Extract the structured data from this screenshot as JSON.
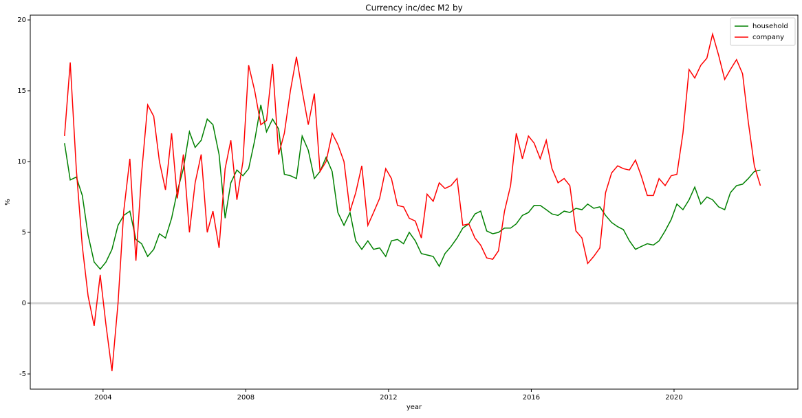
{
  "chart_data": {
    "type": "line",
    "title": "Currency inc/dec M2 by",
    "xlabel": "year",
    "ylabel": "%",
    "x": [
      2002.92,
      2003.08,
      2003.25,
      2003.42,
      2003.58,
      2003.75,
      2003.92,
      2004.08,
      2004.25,
      2004.42,
      2004.58,
      2004.75,
      2004.92,
      2005.08,
      2005.25,
      2005.42,
      2005.58,
      2005.75,
      2005.92,
      2006.08,
      2006.25,
      2006.42,
      2006.58,
      2006.75,
      2006.92,
      2007.08,
      2007.25,
      2007.42,
      2007.58,
      2007.75,
      2007.92,
      2008.08,
      2008.25,
      2008.42,
      2008.58,
      2008.75,
      2008.92,
      2009.08,
      2009.25,
      2009.42,
      2009.58,
      2009.75,
      2009.92,
      2010.08,
      2010.25,
      2010.42,
      2010.58,
      2010.75,
      2010.92,
      2011.08,
      2011.25,
      2011.42,
      2011.58,
      2011.75,
      2011.92,
      2012.08,
      2012.25,
      2012.42,
      2012.58,
      2012.75,
      2012.92,
      2013.08,
      2013.25,
      2013.42,
      2013.58,
      2013.75,
      2013.92,
      2014.08,
      2014.25,
      2014.42,
      2014.58,
      2014.75,
      2014.92,
      2015.08,
      2015.25,
      2015.42,
      2015.58,
      2015.75,
      2015.92,
      2016.08,
      2016.25,
      2016.42,
      2016.58,
      2016.75,
      2016.92,
      2017.08,
      2017.25,
      2017.42,
      2017.58,
      2017.75,
      2017.92,
      2018.08,
      2018.25,
      2018.42,
      2018.58,
      2018.75,
      2018.92,
      2019.08,
      2019.25,
      2019.42,
      2019.58,
      2019.75,
      2019.92,
      2020.08,
      2020.25,
      2020.42,
      2020.58,
      2020.75,
      2020.92,
      2021.08,
      2021.25,
      2021.42,
      2021.58,
      2021.75,
      2021.92,
      2022.08,
      2022.25,
      2022.42
    ],
    "series": [
      {
        "name": "household",
        "color": "#008000",
        "values": [
          11.3,
          8.7,
          8.9,
          7.6,
          4.8,
          2.9,
          2.4,
          2.9,
          3.8,
          5.5,
          6.2,
          6.5,
          4.5,
          4.2,
          3.3,
          3.8,
          4.9,
          4.6,
          6.0,
          7.9,
          9.5,
          12.1,
          11.0,
          11.5,
          13.0,
          12.6,
          10.5,
          6.0,
          8.5,
          9.4,
          9.0,
          9.5,
          11.5,
          14.0,
          12.1,
          13.0,
          12.3,
          9.1,
          9.0,
          8.8,
          11.8,
          10.8,
          8.8,
          9.3,
          10.3,
          9.3,
          6.4,
          5.5,
          6.4,
          4.4,
          3.8,
          4.4,
          3.8,
          3.9,
          3.3,
          4.4,
          4.5,
          4.2,
          5.0,
          4.4,
          3.5,
          3.4,
          3.3,
          2.6,
          3.5,
          4.0,
          4.6,
          5.3,
          5.6,
          6.3,
          6.5,
          5.1,
          4.9,
          5.0,
          5.3,
          5.3,
          5.6,
          6.2,
          6.4,
          6.9,
          6.9,
          6.6,
          6.3,
          6.2,
          6.5,
          6.4,
          6.7,
          6.6,
          7.0,
          6.7,
          6.8,
          6.2,
          5.7,
          5.4,
          5.2,
          4.4,
          3.8,
          4.0,
          4.2,
          4.1,
          4.4,
          5.1,
          5.9,
          7.0,
          6.6,
          7.3,
          8.2,
          7.0,
          7.5,
          7.3,
          6.8,
          6.6,
          7.8,
          8.3,
          8.4,
          8.8,
          9.3,
          9.4
        ]
      },
      {
        "name": "company",
        "color": "#ff0000",
        "values": [
          11.8,
          17.0,
          9.5,
          4.0,
          0.5,
          -1.6,
          2.0,
          -1.5,
          -4.8,
          0.0,
          6.5,
          10.2,
          3.0,
          9.2,
          14.0,
          13.2,
          10.0,
          8.0,
          12.0,
          7.4,
          10.5,
          5.0,
          8.5,
          10.5,
          5.0,
          6.5,
          3.9,
          9.5,
          11.5,
          7.3,
          10.0,
          16.8,
          15.0,
          12.6,
          12.9,
          16.9,
          10.5,
          12.0,
          15.0,
          17.4,
          15.0,
          12.6,
          14.8,
          9.3,
          10.0,
          12.0,
          11.2,
          10.0,
          6.5,
          7.8,
          9.7,
          5.5,
          6.4,
          7.4,
          9.5,
          8.8,
          6.9,
          6.8,
          6.0,
          5.8,
          4.6,
          7.7,
          7.2,
          8.5,
          8.1,
          8.3,
          8.8,
          5.5,
          5.6,
          4.6,
          4.1,
          3.2,
          3.1,
          3.7,
          6.5,
          8.3,
          12.0,
          10.2,
          11.8,
          11.3,
          10.2,
          11.5,
          9.5,
          8.5,
          8.8,
          8.3,
          5.1,
          4.6,
          2.8,
          3.3,
          3.9,
          7.8,
          9.2,
          9.7,
          9.5,
          9.4,
          10.1,
          9.0,
          7.6,
          7.6,
          8.8,
          8.3,
          9.0,
          9.1,
          12.0,
          16.5,
          15.9,
          16.8,
          17.3,
          19.0,
          17.5,
          15.8,
          16.5,
          17.2,
          16.2,
          12.8,
          9.7,
          8.3
        ]
      }
    ],
    "xlim": [
      2001.96,
      2023.47
    ],
    "xticks": [
      2004,
      2008,
      2012,
      2016,
      2020
    ],
    "ylim": [
      -6.07,
      20.34
    ],
    "yticks": [
      -5,
      0,
      5,
      10,
      15,
      20
    ],
    "hline": 0,
    "hline_color": "#d3d3d3",
    "grid": false,
    "legend": "upper right"
  }
}
